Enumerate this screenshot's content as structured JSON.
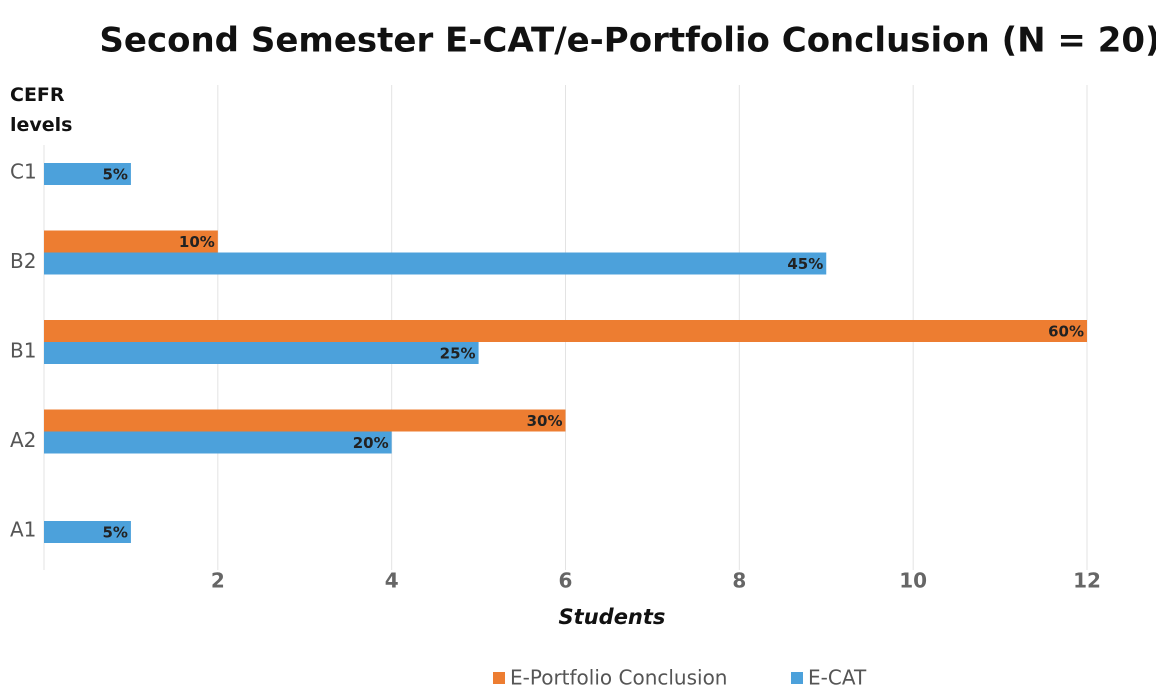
{
  "chart_data": {
    "type": "hbar",
    "title": "Second Semester E-CAT/e-Portfolio Conclusion (N = 20)",
    "x_label": "Students",
    "y_label": "CEFR levels",
    "categories": [
      "A1",
      "A2",
      "B1",
      "B2",
      "C1"
    ],
    "series": [
      {
        "name": "E-Portfolio Conclusion",
        "color": "#ed7d31",
        "values": [
          null,
          6,
          12,
          2,
          null
        ],
        "value_labels": [
          null,
          "30%",
          "60%",
          "10%",
          null
        ]
      },
      {
        "name": "E-CAT",
        "color": "#4ca1db",
        "values": [
          1,
          4,
          5,
          9,
          1
        ],
        "value_labels": [
          "5%",
          "20%",
          "25%",
          "45%",
          "5%"
        ]
      }
    ],
    "xlim": [
      0,
      12
    ],
    "xticks": [
      2,
      4,
      6,
      8,
      10,
      12
    ],
    "grid": true,
    "legend": "bottom"
  }
}
